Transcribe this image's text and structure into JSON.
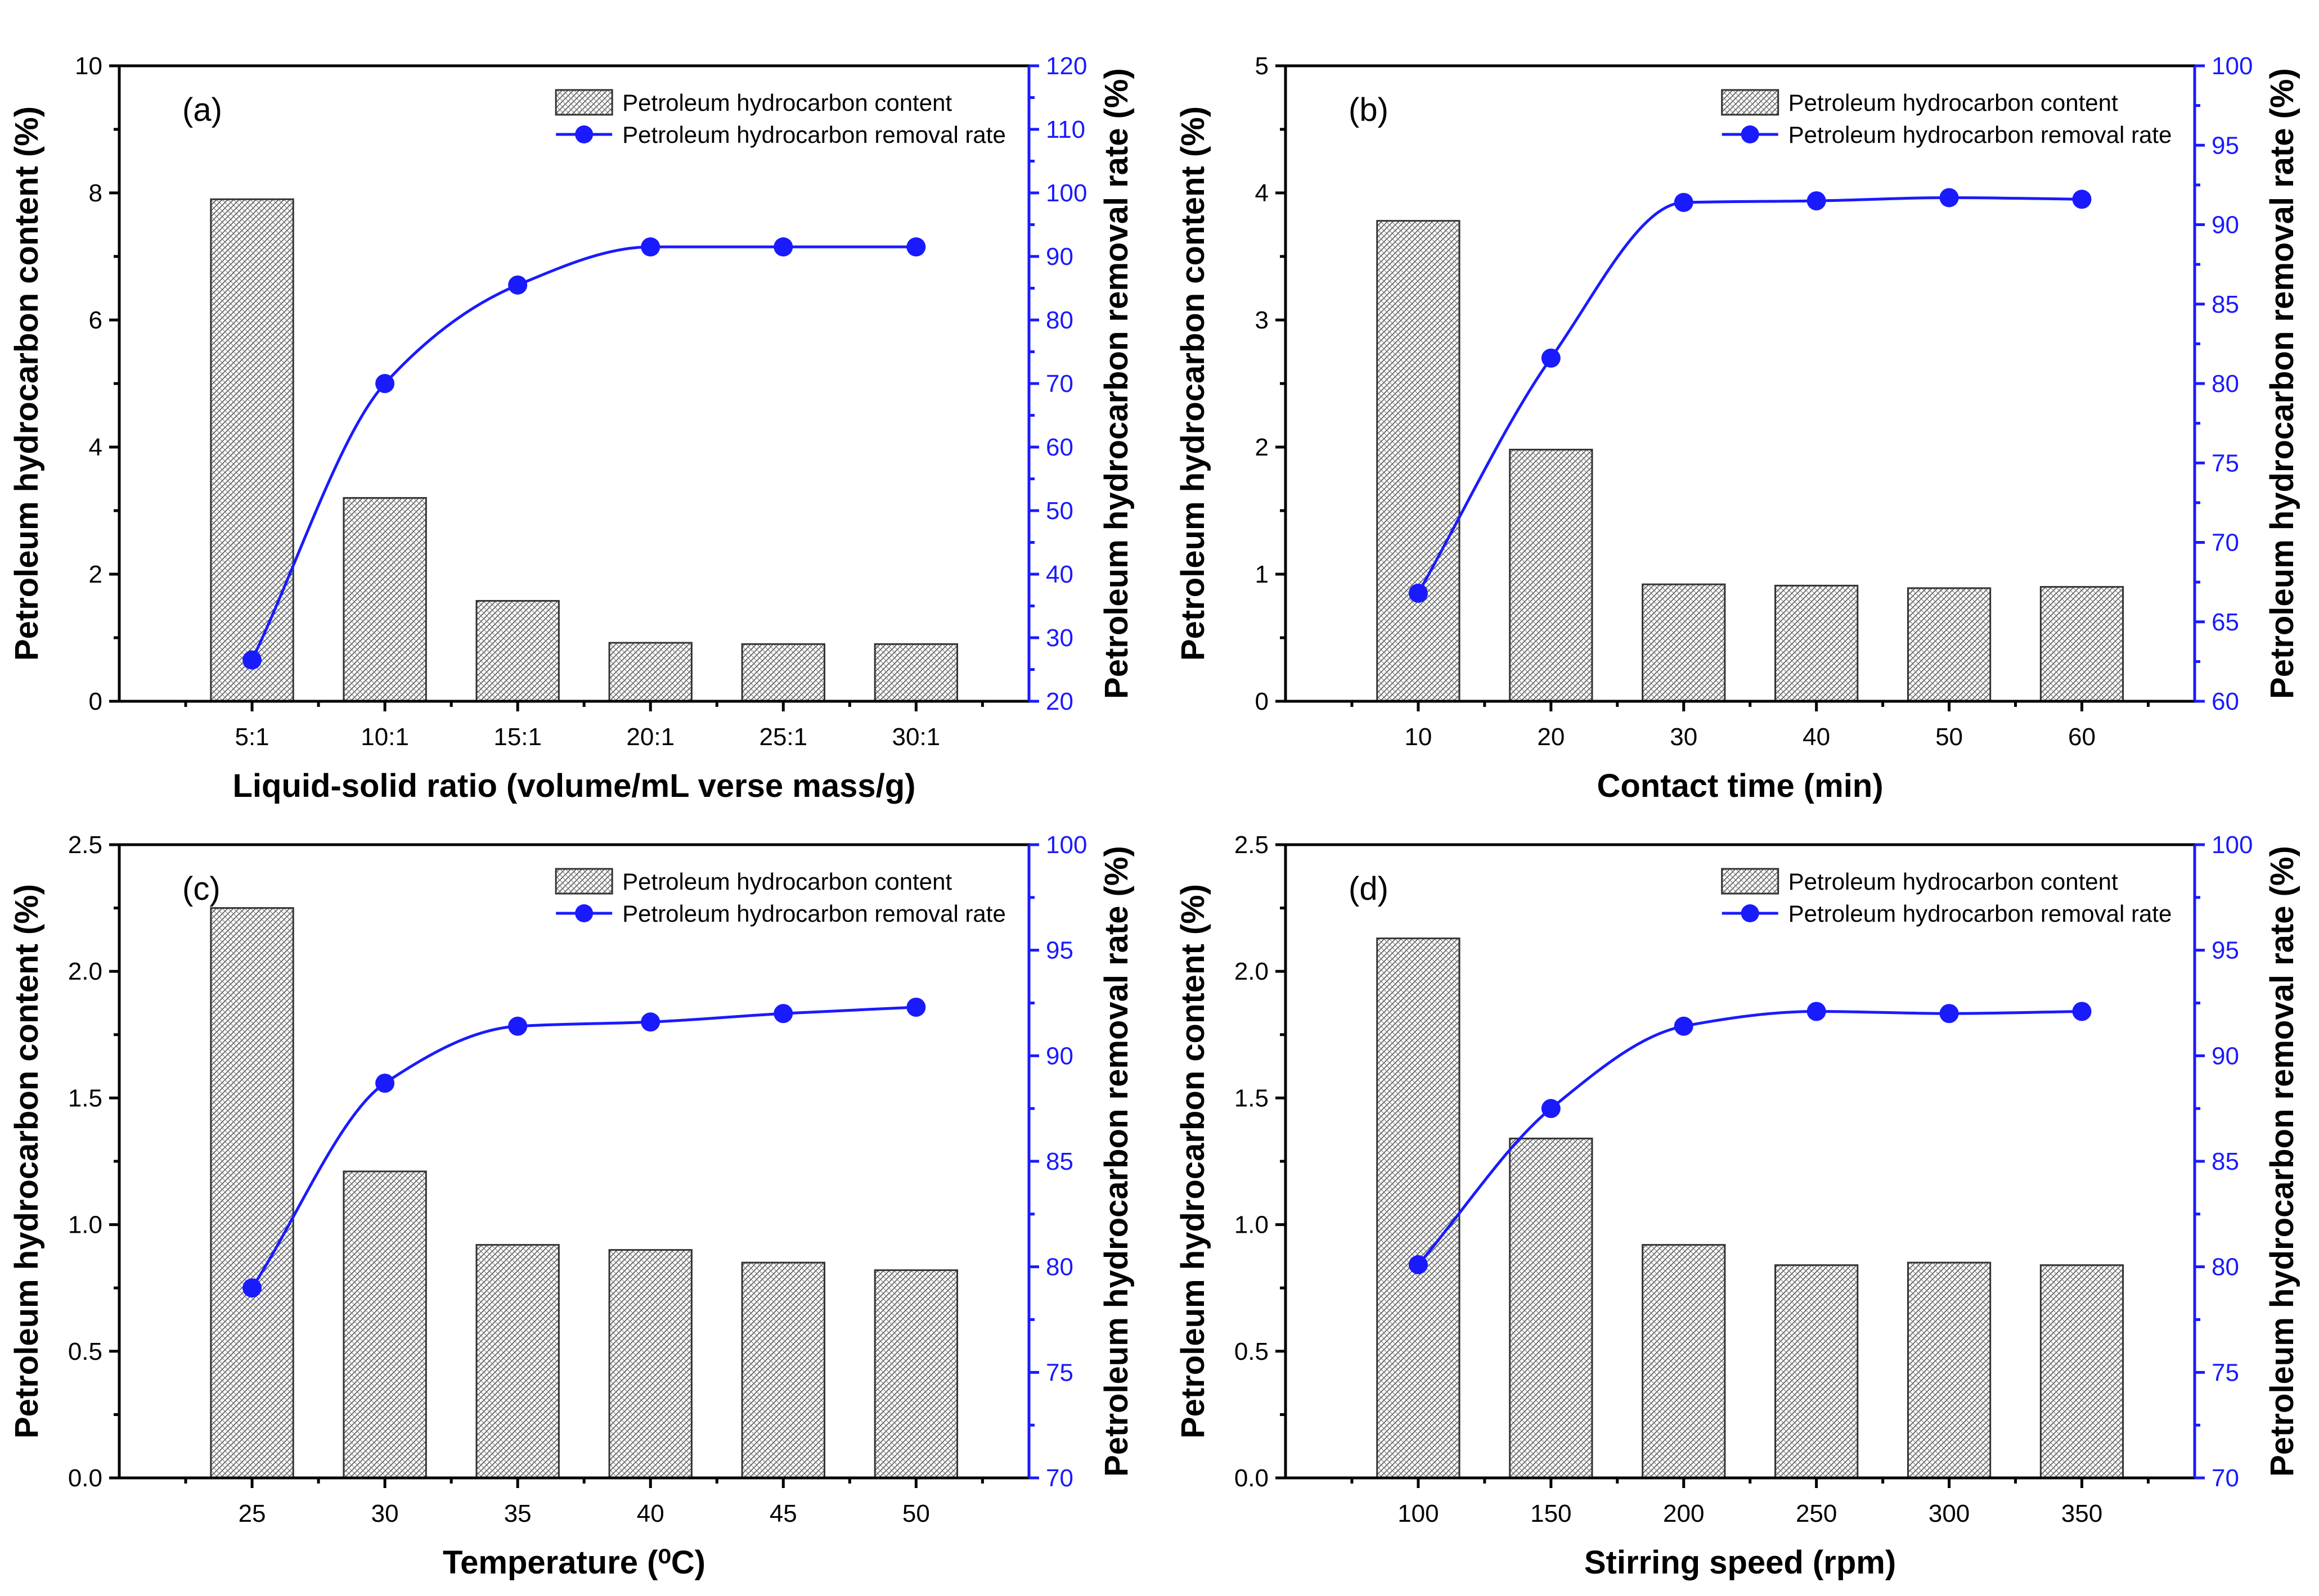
{
  "figure": {
    "legend": {
      "bar_label": "Petroleum hydrocarbon content",
      "line_label": "Petroleum hydrocarbon removal rate"
    },
    "colors": {
      "line": "#1a1aff",
      "bar_edge": "#333333",
      "axis": "#000000"
    }
  },
  "chart_data": [
    {
      "type": "bar",
      "panel": "(a)",
      "categories": [
        "5:1",
        "10:1",
        "15:1",
        "20:1",
        "25:1",
        "30:1"
      ],
      "xlabel": "Liquid-solid ratio (volume/mL verse mass/g)",
      "ylabel": "Petroleum hydrocarbon content (%)",
      "y2label": "Petroleum hydrocarbon removal rate (%)",
      "ylim": [
        0,
        10
      ],
      "yticks": [
        0,
        2,
        4,
        6,
        8,
        10
      ],
      "ytick_labels": [
        "0",
        "2",
        "4",
        "6",
        "8",
        "10"
      ],
      "y2lim": [
        20,
        120
      ],
      "y2ticks": [
        20,
        30,
        40,
        50,
        60,
        70,
        80,
        90,
        100,
        110,
        120
      ],
      "y2tick_labels": [
        "20",
        "30",
        "40",
        "50",
        "60",
        "70",
        "80",
        "90",
        "100",
        "110",
        "120"
      ],
      "series": [
        {
          "name": "Petroleum hydrocarbon content",
          "axis": "left",
          "kind": "bar",
          "values": [
            7.9,
            3.2,
            1.58,
            0.92,
            0.9,
            0.9
          ]
        },
        {
          "name": "Petroleum hydrocarbon removal rate",
          "axis": "right",
          "kind": "line",
          "values": [
            26.5,
            70.0,
            85.5,
            91.5,
            91.5,
            91.5
          ]
        }
      ]
    },
    {
      "type": "bar",
      "panel": "(b)",
      "categories": [
        "10",
        "20",
        "30",
        "40",
        "50",
        "60"
      ],
      "xlabel": "Contact time (min)",
      "ylabel": "Petroleum hydrocarbon content (%)",
      "y2label": "Petroleum hydrocarbon removal rate (%)",
      "ylim": [
        0,
        5
      ],
      "yticks": [
        0,
        1,
        2,
        3,
        4,
        5
      ],
      "ytick_labels": [
        "0",
        "1",
        "2",
        "3",
        "4",
        "5"
      ],
      "y2lim": [
        60,
        100
      ],
      "y2ticks": [
        60,
        65,
        70,
        75,
        80,
        85,
        90,
        95,
        100
      ],
      "y2tick_labels": [
        "60",
        "65",
        "70",
        "75",
        "80",
        "85",
        "90",
        "95",
        "100"
      ],
      "series": [
        {
          "name": "Petroleum hydrocarbon content",
          "axis": "left",
          "kind": "bar",
          "values": [
            3.78,
            1.98,
            0.92,
            0.91,
            0.89,
            0.9
          ]
        },
        {
          "name": "Petroleum hydrocarbon removal rate",
          "axis": "right",
          "kind": "line",
          "values": [
            66.8,
            81.6,
            91.4,
            91.5,
            91.7,
            91.6
          ]
        }
      ]
    },
    {
      "type": "bar",
      "panel": "(c)",
      "categories": [
        "25",
        "30",
        "35",
        "40",
        "45",
        "50"
      ],
      "xlabel": "Temperature (⁰C)",
      "ylabel": "Petroleum hydrocarbon content (%)",
      "y2label": "Petroleum hydrocarbon removal rate (%)",
      "ylim": [
        0,
        2.5
      ],
      "yticks": [
        0,
        0.5,
        1.0,
        1.5,
        2.0,
        2.5
      ],
      "ytick_labels": [
        "0.0",
        "0.5",
        "1.0",
        "1.5",
        "2.0",
        "2.5"
      ],
      "y2lim": [
        70,
        100
      ],
      "y2ticks": [
        70,
        75,
        80,
        85,
        90,
        95,
        100
      ],
      "y2tick_labels": [
        "70",
        "75",
        "80",
        "85",
        "90",
        "95",
        "100"
      ],
      "series": [
        {
          "name": "Petroleum hydrocarbon content",
          "axis": "left",
          "kind": "bar",
          "values": [
            2.25,
            1.21,
            0.92,
            0.9,
            0.85,
            0.82
          ]
        },
        {
          "name": "Petroleum hydrocarbon removal rate",
          "axis": "right",
          "kind": "line",
          "values": [
            79.0,
            88.7,
            91.4,
            91.6,
            92.0,
            92.3
          ]
        }
      ]
    },
    {
      "type": "bar",
      "panel": "(d)",
      "categories": [
        "100",
        "150",
        "200",
        "250",
        "300",
        "350"
      ],
      "xlabel": "Stirring speed (rpm)",
      "ylabel": "Petroleum hydrocarbon content (%)",
      "y2label": "Petroleum hydrocarbon removal rate (%)",
      "ylim": [
        0,
        2.5
      ],
      "yticks": [
        0,
        0.5,
        1.0,
        1.5,
        2.0,
        2.5
      ],
      "ytick_labels": [
        "0.0",
        "0.5",
        "1.0",
        "1.5",
        "2.0",
        "2.5"
      ],
      "y2lim": [
        70,
        100
      ],
      "y2ticks": [
        70,
        75,
        80,
        85,
        90,
        95,
        100
      ],
      "y2tick_labels": [
        "70",
        "75",
        "80",
        "85",
        "90",
        "95",
        "100"
      ],
      "series": [
        {
          "name": "Petroleum hydrocarbon content",
          "axis": "left",
          "kind": "bar",
          "values": [
            2.13,
            1.34,
            0.92,
            0.84,
            0.85,
            0.84
          ]
        },
        {
          "name": "Petroleum hydrocarbon removal rate",
          "axis": "right",
          "kind": "line",
          "values": [
            80.1,
            87.5,
            91.4,
            92.1,
            92.0,
            92.1
          ]
        }
      ]
    }
  ]
}
